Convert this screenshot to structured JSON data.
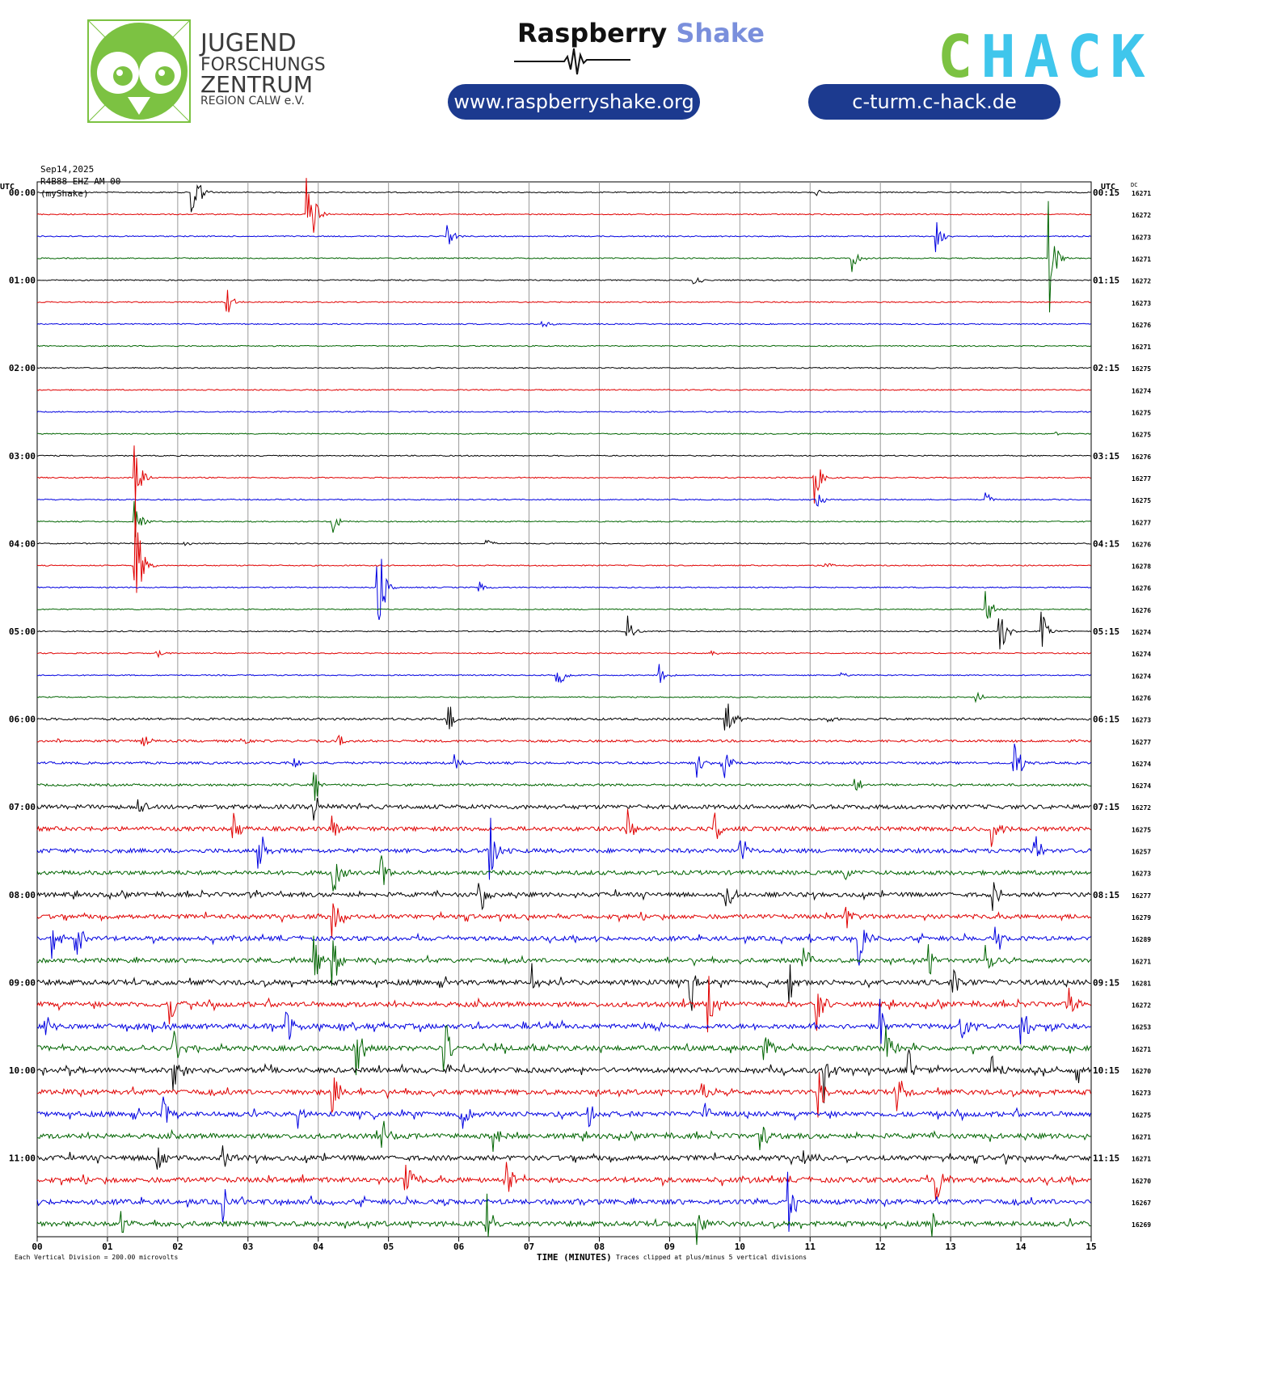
{
  "banner": {
    "jufo_line1": "JUGEND",
    "jufo_line2": "FORSCHUNGS",
    "jufo_line3": "ZENTRUM",
    "jufo_line4": "REGION CALW e.V.",
    "rs_part1": "Raspberry",
    "rs_part2": "Shake",
    "rs_url": "www.raspberryshake.org",
    "chack_c": "C",
    "chack_rest": "HACK",
    "chack_url": "c-turm.c-hack.de",
    "colors": {
      "jufo_green": "#7cc242",
      "pill_blue": "#1c3a8f",
      "chack_cyan": "#3fc6ec",
      "shake_blue": "#7a8fdc"
    }
  },
  "meta": {
    "date": "Sep14,2025",
    "station": "R4B88 EHZ AM 00",
    "source": "(myShake)"
  },
  "chart_data": {
    "type": "line",
    "title": "Sep14,2025",
    "subtitle": "R4B88 EHZ AM 00",
    "xlabel": "TIME (MINUTES)",
    "xlim": [
      0,
      15
    ],
    "x_ticks": [
      "00",
      "01",
      "02",
      "03",
      "04",
      "05",
      "06",
      "07",
      "08",
      "09",
      "10",
      "11",
      "12",
      "13",
      "14",
      "15"
    ],
    "left_axis_label": "UTC",
    "right_axis_label": "UTC",
    "dc_label": "DC",
    "left_time_labels": [
      "00:00",
      "01:00",
      "02:00",
      "03:00",
      "04:00",
      "05:00",
      "06:00",
      "07:00",
      "08:00",
      "09:00",
      "10:00",
      "11:00"
    ],
    "right_time_labels": [
      "00:15",
      "01:15",
      "02:15",
      "03:15",
      "04:15",
      "05:15",
      "06:15",
      "07:15",
      "08:15",
      "09:15",
      "10:15",
      "11:15"
    ],
    "dc_values": [
      16271,
      16272,
      16273,
      16271,
      16272,
      16273,
      16276,
      16271,
      16275,
      16274,
      16275,
      16275,
      16276,
      16277,
      16275,
      16277,
      16276,
      16278,
      16276,
      16276,
      16274,
      16274,
      16274,
      16276,
      16273,
      16277,
      16274,
      16274,
      16272,
      16275,
      16257,
      16273,
      16277,
      16279,
      16289,
      16271,
      16281,
      16272,
      16253,
      16271,
      16270,
      16273,
      16275,
      16271,
      16271,
      16270,
      16267,
      16269
    ],
    "trace_colors": [
      "#000000",
      "#e00000",
      "#0000e0",
      "#006400"
    ],
    "footer_left": "Each Vertical Division =  200.00 microvolts",
    "footer_right": "Traces clipped at plus/minus 5 vertical divisions",
    "events": [
      {
        "row": 0,
        "min": 2.2,
        "amp": 70
      },
      {
        "row": 0,
        "min": 11.1,
        "amp": 4
      },
      {
        "row": 1,
        "min": 3.85,
        "amp": 85
      },
      {
        "row": 2,
        "min": 5.85,
        "amp": 14
      },
      {
        "row": 2,
        "min": 12.8,
        "amp": 20
      },
      {
        "row": 3,
        "min": 11.6,
        "amp": 18
      },
      {
        "row": 3,
        "min": 14.4,
        "amp": 75
      },
      {
        "row": 4,
        "min": 9.35,
        "amp": 9
      },
      {
        "row": 5,
        "min": 2.7,
        "amp": 20
      },
      {
        "row": 6,
        "min": 7.2,
        "amp": 6
      },
      {
        "row": 11,
        "min": 14.5,
        "amp": 4
      },
      {
        "row": 13,
        "min": 1.4,
        "amp": 45
      },
      {
        "row": 13,
        "min": 11.05,
        "amp": 40
      },
      {
        "row": 14,
        "min": 11.1,
        "amp": 12
      },
      {
        "row": 14,
        "min": 13.5,
        "amp": 10
      },
      {
        "row": 15,
        "min": 1.4,
        "amp": 35
      },
      {
        "row": 15,
        "min": 4.2,
        "amp": 20
      },
      {
        "row": 16,
        "min": 6.4,
        "amp": 6
      },
      {
        "row": 16,
        "min": 2.1,
        "amp": 4
      },
      {
        "row": 17,
        "min": 1.4,
        "amp": 85
      },
      {
        "row": 17,
        "min": 11.2,
        "amp": 8
      },
      {
        "row": 18,
        "min": 4.85,
        "amp": 90
      },
      {
        "row": 18,
        "min": 6.3,
        "amp": 8
      },
      {
        "row": 19,
        "min": 13.5,
        "amp": 30
      },
      {
        "row": 20,
        "min": 8.4,
        "amp": 25
      },
      {
        "row": 20,
        "min": 13.7,
        "amp": 35
      },
      {
        "row": 20,
        "min": 14.3,
        "amp": 25
      },
      {
        "row": 21,
        "min": 1.7,
        "amp": 8
      },
      {
        "row": 21,
        "min": 9.6,
        "amp": 4
      },
      {
        "row": 22,
        "min": 7.4,
        "amp": 30
      },
      {
        "row": 22,
        "min": 8.85,
        "amp": 25
      },
      {
        "row": 22,
        "min": 11.4,
        "amp": 10
      },
      {
        "row": 23,
        "min": 13.35,
        "amp": 10
      },
      {
        "row": 24,
        "min": 5.85,
        "amp": 25
      },
      {
        "row": 24,
        "min": 9.8,
        "amp": 45
      },
      {
        "row": 24,
        "min": 11.2,
        "amp": 8
      },
      {
        "row": 25,
        "min": 0.3,
        "amp": 12
      },
      {
        "row": 25,
        "min": 1.5,
        "amp": 10
      },
      {
        "row": 25,
        "min": 2.9,
        "amp": 8
      },
      {
        "row": 25,
        "min": 4.3,
        "amp": 8
      },
      {
        "row": 26,
        "min": 3.65,
        "amp": 10
      },
      {
        "row": 26,
        "min": 5.95,
        "amp": 10
      },
      {
        "row": 26,
        "min": 9.4,
        "amp": 20
      },
      {
        "row": 26,
        "min": 9.75,
        "amp": 40
      },
      {
        "row": 26,
        "min": 13.9,
        "amp": 45
      },
      {
        "row": 27,
        "min": 3.95,
        "amp": 25
      },
      {
        "row": 27,
        "min": 11.65,
        "amp": 12
      },
      {
        "row": 28,
        "min": 1.45,
        "amp": 20
      },
      {
        "row": 28,
        "min": 3.95,
        "amp": 30
      },
      {
        "row": 28,
        "min": 4.55,
        "amp": 8
      },
      {
        "row": 29,
        "min": 2.8,
        "amp": 25
      },
      {
        "row": 29,
        "min": 4.2,
        "amp": 25
      },
      {
        "row": 29,
        "min": 8.4,
        "amp": 30
      },
      {
        "row": 29,
        "min": 9.65,
        "amp": 35
      },
      {
        "row": 29,
        "min": 13.6,
        "amp": 30
      },
      {
        "row": 30,
        "min": 3.15,
        "amp": 45
      },
      {
        "row": 30,
        "min": 6.45,
        "amp": 45
      },
      {
        "row": 30,
        "min": 10.0,
        "amp": 30
      },
      {
        "row": 30,
        "min": 14.2,
        "amp": 35
      },
      {
        "row": 31,
        "min": 4.2,
        "amp": 40
      },
      {
        "row": 31,
        "min": 4.9,
        "amp": 30
      },
      {
        "row": 31,
        "min": 11.5,
        "amp": 10
      },
      {
        "row": 32,
        "min": 6.3,
        "amp": 30
      },
      {
        "row": 32,
        "min": 9.8,
        "amp": 35
      },
      {
        "row": 32,
        "min": 13.6,
        "amp": 30
      },
      {
        "row": 33,
        "min": 4.2,
        "amp": 50
      },
      {
        "row": 33,
        "min": 11.5,
        "amp": 25
      },
      {
        "row": 34,
        "min": 0.2,
        "amp": 40
      },
      {
        "row": 34,
        "min": 0.55,
        "amp": 35
      },
      {
        "row": 34,
        "min": 11.7,
        "amp": 35
      },
      {
        "row": 34,
        "min": 13.65,
        "amp": 20
      },
      {
        "row": 35,
        "min": 3.95,
        "amp": 45
      },
      {
        "row": 35,
        "min": 4.2,
        "amp": 50
      },
      {
        "row": 35,
        "min": 10.9,
        "amp": 30
      },
      {
        "row": 35,
        "min": 12.7,
        "amp": 20
      },
      {
        "row": 35,
        "min": 13.5,
        "amp": 25
      },
      {
        "row": 36,
        "min": 7.05,
        "amp": 25
      },
      {
        "row": 36,
        "min": 9.3,
        "amp": 40
      },
      {
        "row": 36,
        "min": 10.7,
        "amp": 40
      },
      {
        "row": 36,
        "min": 13.05,
        "amp": 20
      },
      {
        "row": 37,
        "min": 1.9,
        "amp": 25
      },
      {
        "row": 37,
        "min": 9.55,
        "amp": 45
      },
      {
        "row": 37,
        "min": 11.1,
        "amp": 40
      },
      {
        "row": 37,
        "min": 14.7,
        "amp": 20
      },
      {
        "row": 38,
        "min": 0.1,
        "amp": 20
      },
      {
        "row": 38,
        "min": 3.55,
        "amp": 35
      },
      {
        "row": 38,
        "min": 12.0,
        "amp": 35
      },
      {
        "row": 38,
        "min": 13.15,
        "amp": 35
      },
      {
        "row": 38,
        "min": 14.0,
        "amp": 45
      },
      {
        "row": 39,
        "min": 1.95,
        "amp": 35
      },
      {
        "row": 39,
        "min": 4.55,
        "amp": 40
      },
      {
        "row": 39,
        "min": 5.8,
        "amp": 45
      },
      {
        "row": 39,
        "min": 10.35,
        "amp": 30
      },
      {
        "row": 39,
        "min": 12.1,
        "amp": 30
      },
      {
        "row": 40,
        "min": 1.95,
        "amp": 35
      },
      {
        "row": 40,
        "min": 11.2,
        "amp": 45
      },
      {
        "row": 40,
        "min": 12.4,
        "amp": 30
      },
      {
        "row": 40,
        "min": 13.6,
        "amp": 20
      },
      {
        "row": 40,
        "min": 14.8,
        "amp": 20
      },
      {
        "row": 41,
        "min": 4.2,
        "amp": 40
      },
      {
        "row": 41,
        "min": 9.45,
        "amp": 20
      },
      {
        "row": 41,
        "min": 11.1,
        "amp": 40
      },
      {
        "row": 41,
        "min": 12.25,
        "amp": 35
      },
      {
        "row": 42,
        "min": 1.8,
        "amp": 25
      },
      {
        "row": 42,
        "min": 3.7,
        "amp": 25
      },
      {
        "row": 42,
        "min": 6.05,
        "amp": 25
      },
      {
        "row": 42,
        "min": 7.85,
        "amp": 25
      },
      {
        "row": 42,
        "min": 9.5,
        "amp": 20
      },
      {
        "row": 43,
        "min": 4.9,
        "amp": 30
      },
      {
        "row": 43,
        "min": 6.5,
        "amp": 25
      },
      {
        "row": 43,
        "min": 10.3,
        "amp": 20
      },
      {
        "row": 44,
        "min": 1.7,
        "amp": 40
      },
      {
        "row": 44,
        "min": 2.65,
        "amp": 20
      },
      {
        "row": 44,
        "min": 10.9,
        "amp": 15
      },
      {
        "row": 44,
        "min": 13.7,
        "amp": 8
      },
      {
        "row": 45,
        "min": 5.25,
        "amp": 30
      },
      {
        "row": 45,
        "min": 6.7,
        "amp": 25
      },
      {
        "row": 45,
        "min": 12.8,
        "amp": 30
      },
      {
        "row": 46,
        "min": 2.65,
        "amp": 25
      },
      {
        "row": 46,
        "min": 7.7,
        "amp": 8
      },
      {
        "row": 46,
        "min": 10.7,
        "amp": 40
      },
      {
        "row": 47,
        "min": 1.2,
        "amp": 25
      },
      {
        "row": 47,
        "min": 6.4,
        "amp": 40
      },
      {
        "row": 47,
        "min": 9.4,
        "amp": 30
      },
      {
        "row": 47,
        "min": 12.75,
        "amp": 20
      }
    ]
  }
}
